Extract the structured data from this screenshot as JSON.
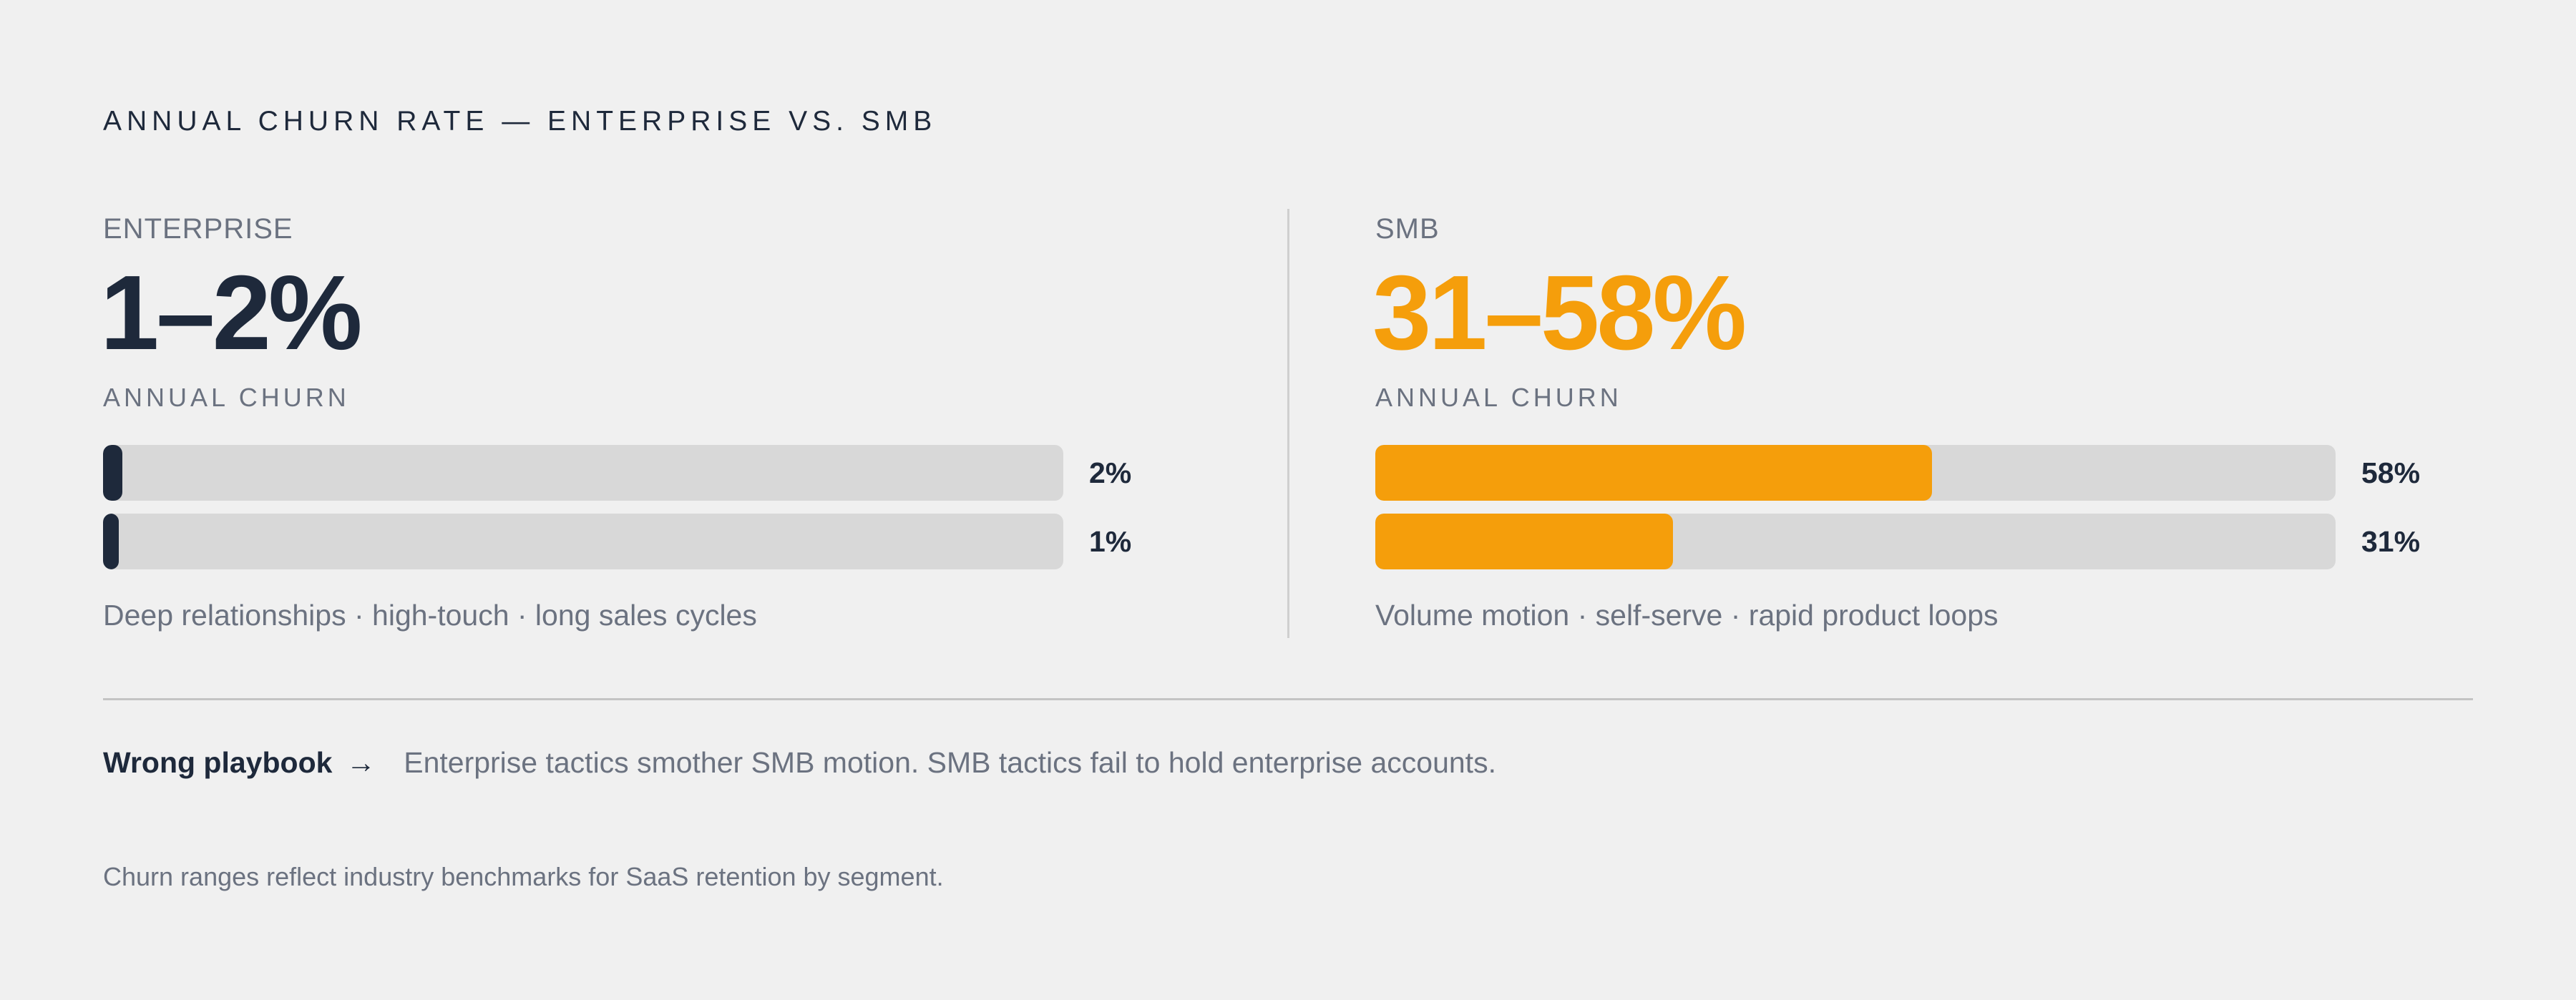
{
  "title": "ANNUAL CHURN RATE — ENTERPRISE VS. SMB",
  "colors": {
    "enterprise": "#1e293b",
    "smb": "#f59e0b",
    "track": "#d8d8d8",
    "muted": "#6b7280"
  },
  "chart_data": [
    {
      "type": "bar",
      "orientation": "horizontal",
      "segment": "ENTERPRISE",
      "headline": "1–2%",
      "metric_label": "ANNUAL CHURN",
      "values": [
        2,
        1
      ],
      "value_labels": [
        "2%",
        "1%"
      ],
      "xlim": [
        0,
        100
      ],
      "unit": "%",
      "color": "#1e293b",
      "note": "Deep relationships · high-touch · long sales cycles"
    },
    {
      "type": "bar",
      "orientation": "horizontal",
      "segment": "SMB",
      "headline": "31–58%",
      "metric_label": "ANNUAL CHURN",
      "values": [
        58,
        31
      ],
      "value_labels": [
        "58%",
        "31%"
      ],
      "xlim": [
        0,
        100
      ],
      "unit": "%",
      "color": "#f59e0b",
      "note": "Volume motion · self-serve · rapid product loops"
    }
  ],
  "callout": {
    "label": "Wrong playbook",
    "arrow": "→",
    "text": "Enterprise tactics smother SMB motion. SMB tactics fail to hold enterprise accounts."
  },
  "footnote": "Churn ranges reflect industry benchmarks for SaaS retention by segment."
}
